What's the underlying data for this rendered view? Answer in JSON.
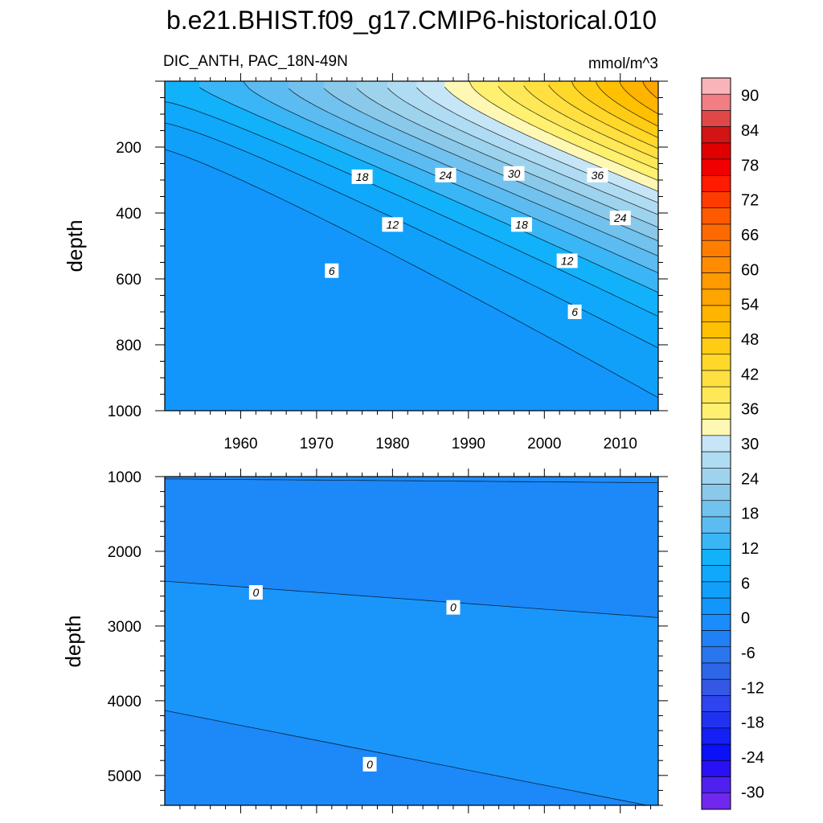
{
  "figure": {
    "title": "b.e21.BHIST.f09_g17.CMIP6-historical.010",
    "left_string": "DIC_ANTH, PAC_18N-49N",
    "right_string": "mmol/m^3"
  },
  "chart_data": [
    {
      "type": "contour",
      "panel": "upper",
      "xlabel": "",
      "ylabel": "depth",
      "xlim": [
        1950,
        2015
      ],
      "ylim": [
        1000,
        0
      ],
      "x_ticks": [
        1960,
        1970,
        1980,
        1990,
        2000,
        2010
      ],
      "y_ticks": [
        200,
        400,
        600,
        800,
        1000
      ],
      "contour_levels": [
        6,
        8,
        10,
        12,
        14,
        16,
        18,
        20,
        22,
        24,
        26,
        28,
        30,
        32,
        34,
        36,
        38,
        40,
        42,
        44,
        46,
        48,
        50,
        52,
        54,
        56,
        58
      ],
      "contour_labels": [
        {
          "text": "18",
          "x": 1976,
          "y": 290
        },
        {
          "text": "24",
          "x": 1987,
          "y": 285
        },
        {
          "text": "30",
          "x": 1996,
          "y": 280
        },
        {
          "text": "36",
          "x": 2007,
          "y": 285
        },
        {
          "text": "12",
          "x": 1980,
          "y": 435
        },
        {
          "text": "18",
          "x": 1997,
          "y": 435
        },
        {
          "text": "24",
          "x": 2010,
          "y": 415
        },
        {
          "text": "12",
          "x": 2003,
          "y": 545
        },
        {
          "text": "6",
          "x": 1972,
          "y": 575
        },
        {
          "text": "6",
          "x": 2004,
          "y": 700
        }
      ]
    },
    {
      "type": "contour",
      "panel": "lower",
      "xlabel": "",
      "ylabel": "depth",
      "xlim": [
        1950,
        2015
      ],
      "ylim": [
        5400,
        1000
      ],
      "y_ticks": [
        1000,
        2000,
        3000,
        4000,
        5000
      ],
      "contour_levels": [
        -2,
        0,
        0,
        2
      ],
      "contour_labels": [
        {
          "text": "0",
          "x": 1962,
          "y": 2550
        },
        {
          "text": "0",
          "x": 1988,
          "y": 2750
        },
        {
          "text": "0",
          "x": 1977,
          "y": 4850
        }
      ]
    },
    {
      "type": "colorbar",
      "range": [
        -33,
        93
      ],
      "interval": 3,
      "tick_labels": [
        "90",
        "84",
        "78",
        "72",
        "66",
        "60",
        "54",
        "48",
        "42",
        "36",
        "30",
        "24",
        "18",
        "12",
        "6",
        "0",
        "-6",
        "-12",
        "-18",
        "-24",
        "-30"
      ],
      "colors": [
        "#f8b4b8",
        "#f07e83",
        "#e04848",
        "#d21414",
        "#e00000",
        "#f00000",
        "#ff1a00",
        "#ff3c00",
        "#ff5a00",
        "#ff6a00",
        "#ff7e00",
        "#ff8c00",
        "#ff9a00",
        "#ffa500",
        "#ffb400",
        "#ffc000",
        "#ffcc15",
        "#ffd82a",
        "#ffe040",
        "#ffe858",
        "#fff070",
        "#fff8b4",
        "#c6e6f7",
        "#b0dcf3",
        "#9ed3ee",
        "#8ac9ea",
        "#72c2ef",
        "#5cbcf2",
        "#3ab6f6",
        "#12b2fa",
        "#10a8fa",
        "#10a0fa",
        "#1396fc",
        "#1a8cfc",
        "#2080f6",
        "#2a76ee",
        "#2e66e8",
        "#3458e4",
        "#2e44ee",
        "#2032f0",
        "#1420f6",
        "#0a10f8",
        "#2a10f4",
        "#5020f0",
        "#7028ee"
      ]
    }
  ]
}
